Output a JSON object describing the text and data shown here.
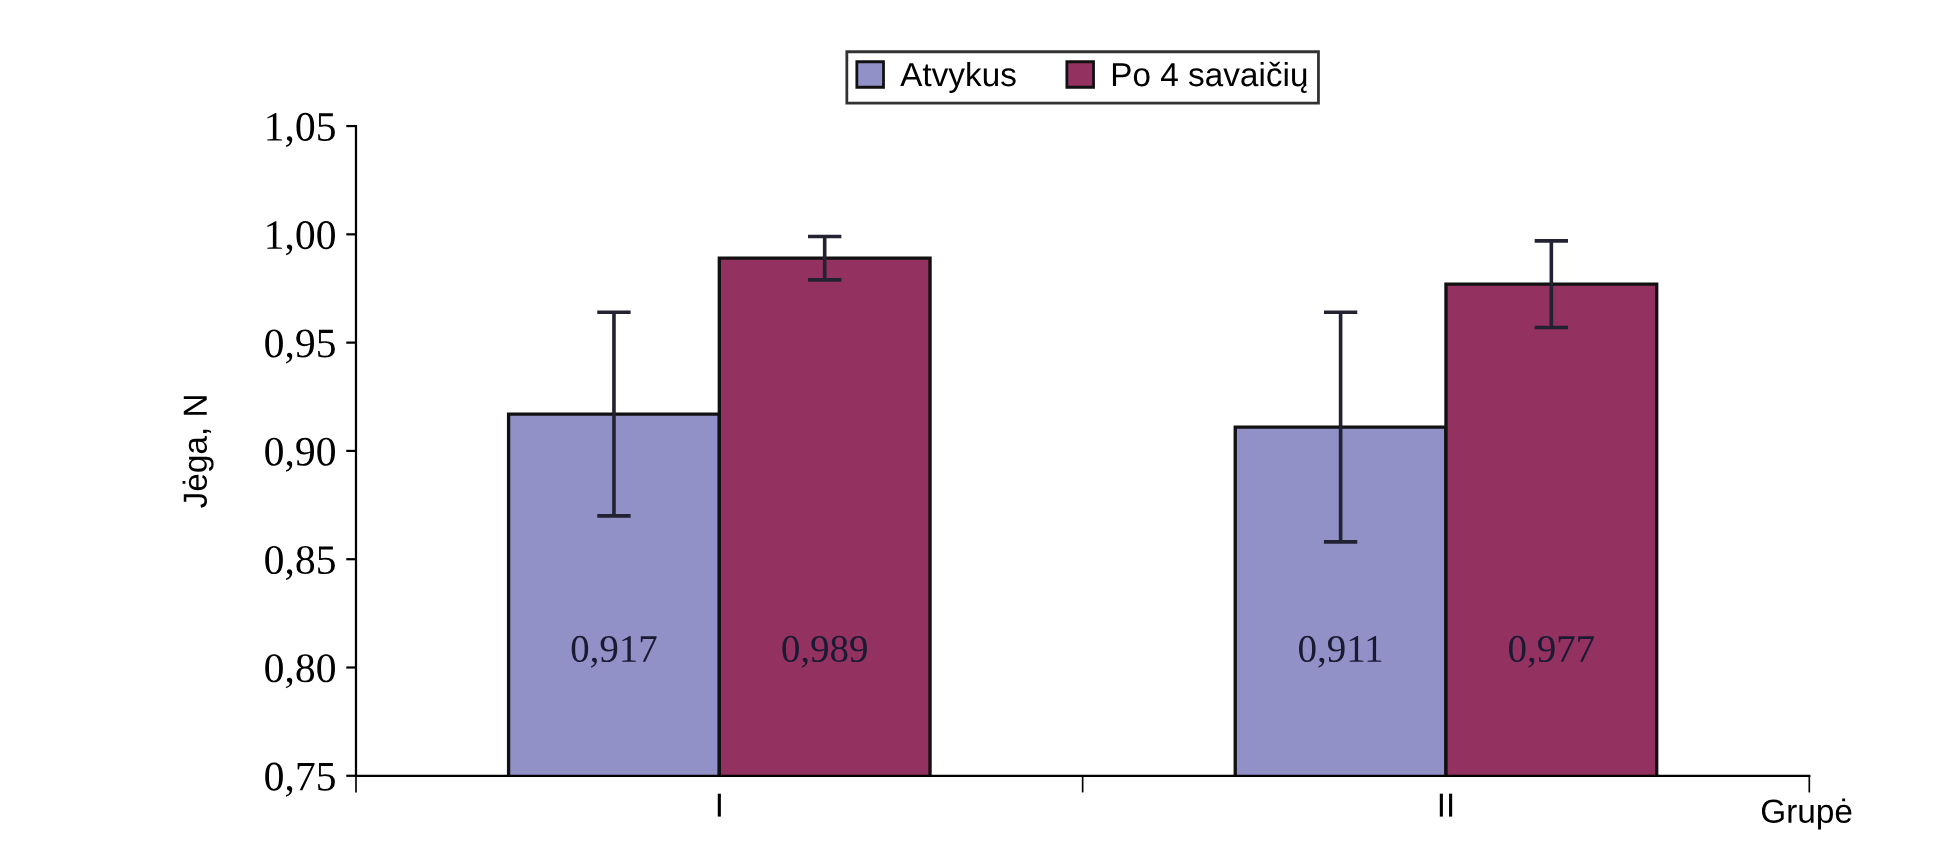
{
  "chart_data": {
    "type": "bar",
    "ylabel": "Jėga, N",
    "xlabel": "Grupė",
    "categories": [
      "I",
      "II"
    ],
    "series": [
      {
        "name": "Atvykus",
        "color": "#9191c8",
        "values": [
          0.917,
          0.911
        ],
        "errors": [
          0.047,
          0.053
        ],
        "value_labels": [
          "0,917",
          "0,911"
        ]
      },
      {
        "name": "Po 4 savaičių",
        "color": "#933160",
        "values": [
          0.989,
          0.977
        ],
        "errors": [
          0.01,
          0.02
        ],
        "value_labels": [
          "0,989",
          "0,977"
        ]
      }
    ],
    "ylim": [
      0.75,
      1.05
    ],
    "yticks": [
      {
        "value": 0.75,
        "label": "0,75"
      },
      {
        "value": 0.8,
        "label": "0,80"
      },
      {
        "value": 0.85,
        "label": "0,85"
      },
      {
        "value": 0.9,
        "label": "0,90"
      },
      {
        "value": 0.95,
        "label": "0,95"
      },
      {
        "value": 1.0,
        "label": "1,00"
      },
      {
        "value": 1.05,
        "label": "1,05"
      }
    ],
    "grid": false,
    "legend": "top"
  }
}
